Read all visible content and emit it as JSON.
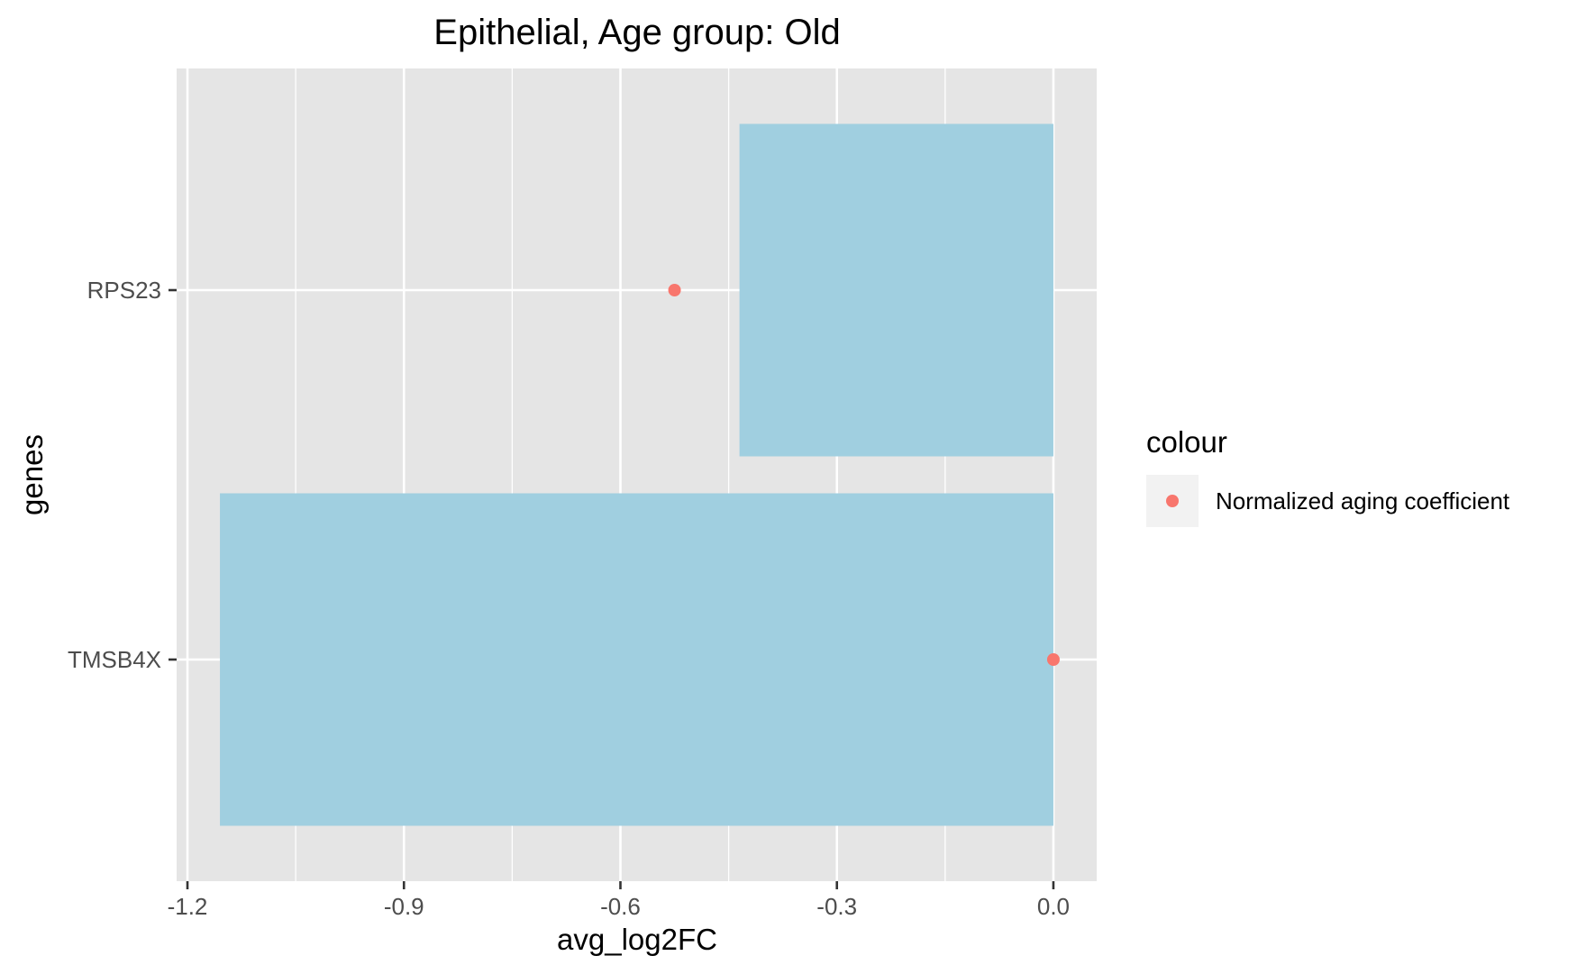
{
  "chart_data": {
    "type": "bar",
    "orientation": "horizontal",
    "title": "Epithelial, Age group: Old",
    "xlabel": "avg_log2FC",
    "ylabel": "genes",
    "categories": [
      "TMSB4X",
      "RPS23"
    ],
    "series": [
      {
        "values": [
          -1.155,
          -0.435
        ],
        "color": "#A0CFE0",
        "mark": "bar"
      },
      {
        "name": "Normalized aging coefficient",
        "values": [
          0.0,
          -0.525
        ],
        "color": "#F8766D",
        "mark": "point"
      }
    ],
    "x_ticks": [
      "-1.2",
      "-0.9",
      "-0.6",
      "-0.3",
      "0.0"
    ],
    "xlim": [
      -1.215,
      0.06
    ],
    "grid": true,
    "legend": {
      "title": "colour",
      "position": "right",
      "entries": [
        "Normalized aging coefficient"
      ]
    },
    "colors": {
      "panel_background": "#E5E5E5",
      "grid": "#FFFFFF",
      "bar": "#A0CFE0",
      "point": "#F8766D"
    }
  }
}
